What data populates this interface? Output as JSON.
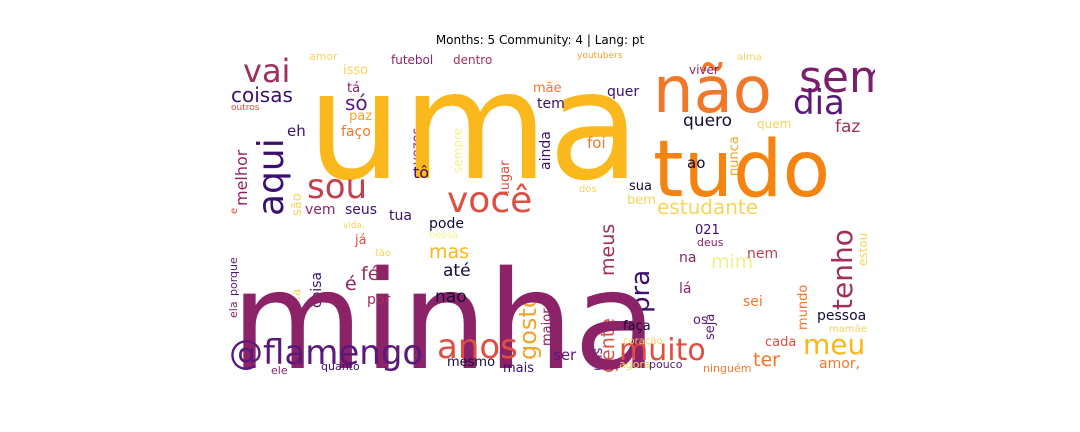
{
  "title": "Months: 5 Community: 4 | Lang: pt",
  "palette": {
    "white": "#ffffff",
    "dark_purple": "#3b0f6f",
    "purple": "#5a187b",
    "magenta": "#8c2369",
    "red": "#c2404e",
    "crimson": "#de4f41",
    "orange": "#f0782a",
    "amber": "#fbb61a",
    "yellow": "#f5d73a",
    "pale_yellow": "#f3f08a",
    "black": "#160b39"
  },
  "words": [
    {
      "text": "uma",
      "color": "#fbb81c"
    },
    {
      "text": "minha",
      "color": "#8c2369"
    },
    {
      "text": "não",
      "color": "#f0782a"
    },
    {
      "text": "tudo",
      "color": "#f4830f"
    },
    {
      "text": "sem",
      "color": "#7b1e6c"
    },
    {
      "text": "você",
      "color": "#de4f41"
    },
    {
      "text": "aqui",
      "color": "#3b0f6f"
    },
    {
      "text": "sou",
      "color": "#c2404e"
    },
    {
      "text": "dia",
      "color": "#5a187b"
    },
    {
      "text": "vai",
      "color": "#a12f5c"
    },
    {
      "text": "@flamengo",
      "color": "#5a187b"
    },
    {
      "text": "anos",
      "color": "#de4f41"
    },
    {
      "text": "muito",
      "color": "#de4f41"
    },
    {
      "text": "meu",
      "color": "#fbb61a"
    },
    {
      "text": "tenho",
      "color": "#a12f5c"
    },
    {
      "text": "estudante",
      "color": "#f4d45b"
    },
    {
      "text": "pra",
      "color": "#3b0f6f"
    },
    {
      "text": "gosto",
      "color": "#f0a42a"
    },
    {
      "text": "coisas",
      "color": "#3b0f6f"
    },
    {
      "text": "só",
      "color": "#5a187b"
    },
    {
      "text": "quero",
      "color": "#160b39"
    },
    {
      "text": "faz",
      "color": "#a12f5c"
    },
    {
      "text": "mas",
      "color": "#fbb61a"
    },
    {
      "text": "até",
      "color": "#160b39"
    },
    {
      "text": "nao",
      "color": "#160b39"
    },
    {
      "text": "fé",
      "color": "#a12f5c"
    },
    {
      "text": "é",
      "color": "#8c2369"
    },
    {
      "text": "gente",
      "color": "#de4f41"
    },
    {
      "text": "meus",
      "color": "#a12f5c"
    },
    {
      "text": "mim",
      "color": "#f3f08a"
    },
    {
      "text": "ter",
      "color": "#f0782a"
    },
    {
      "text": "ser",
      "color": "#5a187b"
    },
    {
      "text": "amor,",
      "color": "#f0782a"
    },
    {
      "text": "pessoa",
      "color": "#160b39"
    },
    {
      "text": "sei",
      "color": "#f0782a"
    },
    {
      "text": "nem",
      "color": "#c2404e"
    },
    {
      "text": "na",
      "color": "#8c2369"
    },
    {
      "text": "lá",
      "color": "#8c2369"
    },
    {
      "text": "faça",
      "color": "#160b39"
    },
    {
      "text": "os",
      "color": "#5a187b"
    },
    {
      "text": "seja",
      "color": "#5a187b"
    },
    {
      "text": "cada",
      "color": "#de4f41"
    },
    {
      "text": "mundo",
      "color": "#f0782a"
    },
    {
      "text": "ao",
      "color": "#160b39"
    },
    {
      "text": "nunca",
      "color": "#f0a42a"
    },
    {
      "text": "foi",
      "color": "#f0782a"
    },
    {
      "text": "sua",
      "color": "#160b39"
    },
    {
      "text": "bem",
      "color": "#f4d45b"
    },
    {
      "text": "dos",
      "color": "#f4d45b"
    },
    {
      "text": "021",
      "color": "#3b0f6f"
    },
    {
      "text": "deus",
      "color": "#8c2369"
    },
    {
      "text": "pode",
      "color": "#160b39"
    },
    {
      "text": "maior",
      "color": "#8c2369"
    },
    {
      "text": "mesmo",
      "color": "#160b39"
    },
    {
      "text": "mais",
      "color": "#3b0f6f"
    },
    {
      "text": "uns",
      "color": "#5a187b"
    },
    {
      "text": "agora",
      "color": "#f4d45b"
    },
    {
      "text": "pouco",
      "color": "#5a187b"
    },
    {
      "text": "ninguém",
      "color": "#f0782a"
    },
    {
      "text": "coração",
      "color": "#f4d45b"
    },
    {
      "text": "quanto",
      "color": "#3b0f6f"
    },
    {
      "text": "ele",
      "color": "#8c2369"
    },
    {
      "text": "ela",
      "color": "#8c2369"
    },
    {
      "text": "por",
      "color": "#a12f5c"
    },
    {
      "text": "coisa",
      "color": "#3b0f6f"
    },
    {
      "text": "gosta",
      "color": "#f4d45b"
    },
    {
      "text": "porque",
      "color": "#5a187b"
    },
    {
      "text": "e",
      "color": "#de4f41"
    },
    {
      "text": "já",
      "color": "#de4f41"
    },
    {
      "text": "tão",
      "color": "#f4d45b"
    },
    {
      "text": "nessa",
      "color": "#f3f08a"
    },
    {
      "text": "vida,",
      "color": "#f4d45b"
    },
    {
      "text": "tua",
      "color": "#3b0f6f"
    },
    {
      "text": "seus",
      "color": "#3b0f6f"
    },
    {
      "text": "vem",
      "color": "#8c2369"
    },
    {
      "text": "são",
      "color": "#f4d45b"
    },
    {
      "text": "melhor",
      "color": "#8c2369"
    },
    {
      "text": "tô",
      "color": "#3b0f6f"
    },
    {
      "text": "eh",
      "color": "#3b0f6f"
    },
    {
      "text": "paz",
      "color": "#f0a42a"
    },
    {
      "text": "faço",
      "color": "#f0782a"
    },
    {
      "text": "tá",
      "color": "#8c2369"
    },
    {
      "text": "isso",
      "color": "#f4d45b"
    },
    {
      "text": "vezes",
      "color": "#8c2369"
    },
    {
      "text": "sempre",
      "color": "#f3f08a"
    },
    {
      "text": "lugar",
      "color": "#de4f41"
    },
    {
      "text": "ainda",
      "color": "#3b0f6f"
    },
    {
      "text": "tem",
      "color": "#3b0f6f"
    },
    {
      "text": "mãe",
      "color": "#f0782a"
    },
    {
      "text": "quer",
      "color": "#3b0f6f"
    },
    {
      "text": "quem",
      "color": "#f4d45b"
    },
    {
      "text": "dentro",
      "color": "#a12f5c"
    },
    {
      "text": "futebol",
      "color": "#8c2369"
    },
    {
      "text": "amor",
      "color": "#f4d45b"
    },
    {
      "text": "viver",
      "color": "#8c2369"
    },
    {
      "text": "youtubers",
      "color": "#f0a42a"
    },
    {
      "text": "alma",
      "color": "#f4d45b"
    },
    {
      "text": "outros",
      "color": "#de4f41"
    },
    {
      "text": "estou",
      "color": "#f4d45b"
    },
    {
      "text": "mamãe",
      "color": "#f4d45b"
    }
  ]
}
